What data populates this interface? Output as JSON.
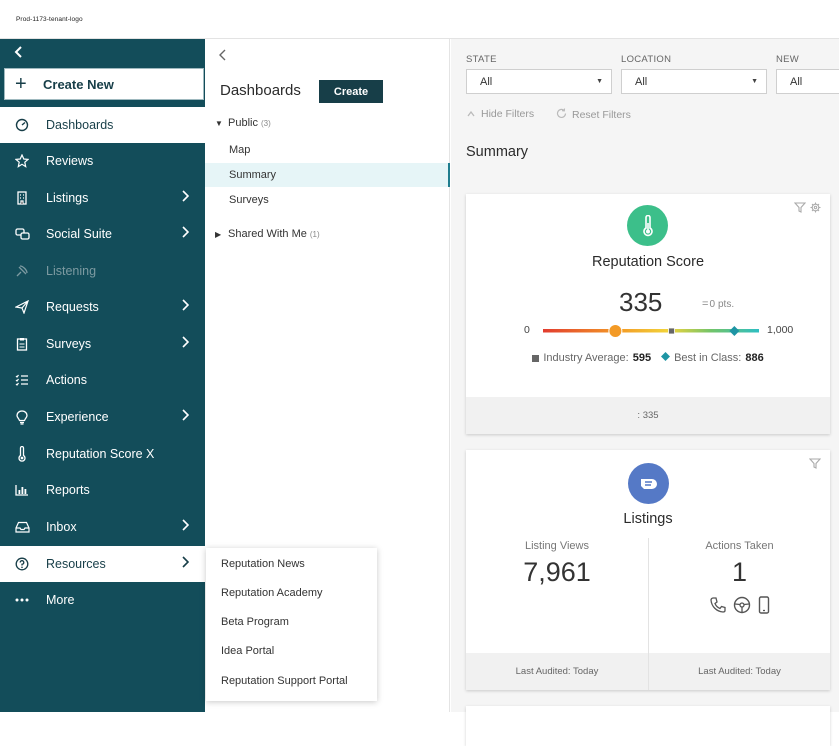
{
  "header": {
    "logo_text": "Prod-1173-tenant-logo"
  },
  "sidebar": {
    "create_new": "Create New",
    "items": [
      {
        "label": "Dashboards",
        "icon": "gauge-icon",
        "chevron": false
      },
      {
        "label": "Reviews",
        "icon": "star-icon",
        "chevron": false
      },
      {
        "label": "Listings",
        "icon": "building-icon",
        "chevron": true
      },
      {
        "label": "Social Suite",
        "icon": "chat-bubbles-icon",
        "chevron": true
      },
      {
        "label": "Listening",
        "icon": "satellite-icon",
        "chevron": false
      },
      {
        "label": "Requests",
        "icon": "paper-plane-icon",
        "chevron": true
      },
      {
        "label": "Surveys",
        "icon": "clipboard-icon",
        "chevron": true
      },
      {
        "label": "Actions",
        "icon": "checklist-icon",
        "chevron": false
      },
      {
        "label": "Experience",
        "icon": "lightbulb-icon",
        "chevron": true
      },
      {
        "label": "Reputation Score X",
        "icon": "thermometer-icon",
        "chevron": false
      },
      {
        "label": "Reports",
        "icon": "bar-chart-icon",
        "chevron": false
      },
      {
        "label": "Inbox",
        "icon": "inbox-icon",
        "chevron": true
      },
      {
        "label": "Resources",
        "icon": "help-circle-icon",
        "chevron": true
      },
      {
        "label": "More",
        "icon": "ellipsis-icon",
        "chevron": false
      }
    ]
  },
  "dashboards_panel": {
    "title": "Dashboards",
    "create_button": "Create",
    "public_label": "Public",
    "public_count": "(3)",
    "items": [
      "Map",
      "Summary",
      "Surveys"
    ],
    "shared_label": "Shared With Me",
    "shared_count": "(1)"
  },
  "resources_menu": {
    "items": [
      "Reputation News",
      "Reputation Academy",
      "Beta Program",
      "Idea Portal",
      "Reputation Support Portal"
    ]
  },
  "filters": {
    "state": {
      "label": "STATE",
      "value": "All"
    },
    "location": {
      "label": "LOCATION",
      "value": "All"
    },
    "new": {
      "label": "NEW",
      "value": "All"
    },
    "hide": "Hide Filters",
    "reset": "Reset Filters"
  },
  "summary": {
    "title": "Summary",
    "reputation_card": {
      "title": "Reputation Score",
      "score": "335",
      "delta": "0",
      "delta_unit": "pts.",
      "min": "0",
      "max": "1,000",
      "industry_label": "Industry Average:",
      "industry_value": "595",
      "best_label": "Best in Class:",
      "best_value": "886",
      "footer": ": 335",
      "score_value": 335,
      "industry_avg_value": 595,
      "best_in_class_value": 886,
      "icon_color": "#3cbf8a"
    },
    "listings_card": {
      "title": "Listings",
      "views_label": "Listing Views",
      "views_value": "7,961",
      "actions_label": "Actions Taken",
      "actions_value": "1",
      "footer_left": "Last Audited: Today",
      "footer_right": "Last Audited: Today",
      "icon_color": "#5579c6"
    }
  },
  "colors": {
    "sidebar": "#134d5a",
    "accent_button": "#173e48"
  }
}
